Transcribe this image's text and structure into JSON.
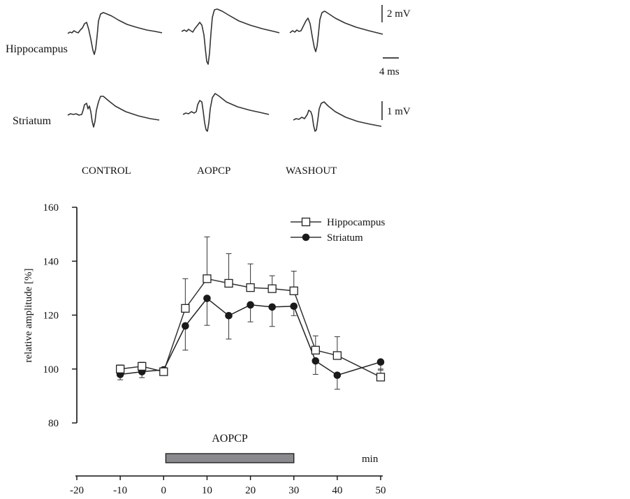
{
  "traces": {
    "rows": [
      "Hippocampus",
      "Striatum"
    ],
    "conditions": [
      "CONTROL",
      "AOPCP",
      "WASHOUT"
    ],
    "scale_bars": {
      "hippo_mv": "2 mV",
      "time": "4 ms",
      "stri_mv": "1 mV"
    }
  },
  "chart_data": {
    "type": "line",
    "title": "",
    "xlabel": "min",
    "ylabel": "relative amplitude [%]",
    "xlim": [
      -20,
      50
    ],
    "ylim": [
      80,
      160
    ],
    "xticks": [
      -20,
      -10,
      0,
      10,
      20,
      30,
      40,
      50
    ],
    "yticks": [
      80,
      100,
      120,
      140,
      160
    ],
    "legend": "top-right",
    "series": [
      {
        "name": "Hippocampus",
        "marker": "open-square",
        "x": [
          -10,
          -5,
          0,
          5,
          10,
          15,
          20,
          25,
          30,
          35,
          40,
          50
        ],
        "y": [
          100,
          101,
          99,
          122.5,
          133.5,
          131.8,
          130.2,
          129.8,
          129,
          107,
          105,
          97
        ],
        "err_up": [
          1.5,
          1.5,
          1.2,
          11,
          15.5,
          11,
          8.8,
          4.8,
          7.3,
          5.3,
          7,
          3
        ]
      },
      {
        "name": "Striatum",
        "marker": "filled-circle",
        "x": [
          -10,
          -5,
          0,
          5,
          10,
          15,
          20,
          25,
          30,
          35,
          40,
          50
        ],
        "y": [
          98,
          99,
          99.7,
          116,
          126.2,
          119.8,
          123.8,
          123,
          123.3,
          103,
          97.7,
          102.6
        ],
        "err_dn": [
          2,
          2.2,
          1.2,
          9,
          10,
          8.7,
          6.3,
          7.2,
          3.5,
          5,
          5.2,
          3
        ]
      }
    ],
    "annotations": [
      {
        "label": "AOPCP",
        "x_start": 0.5,
        "x_end": 30
      }
    ]
  }
}
